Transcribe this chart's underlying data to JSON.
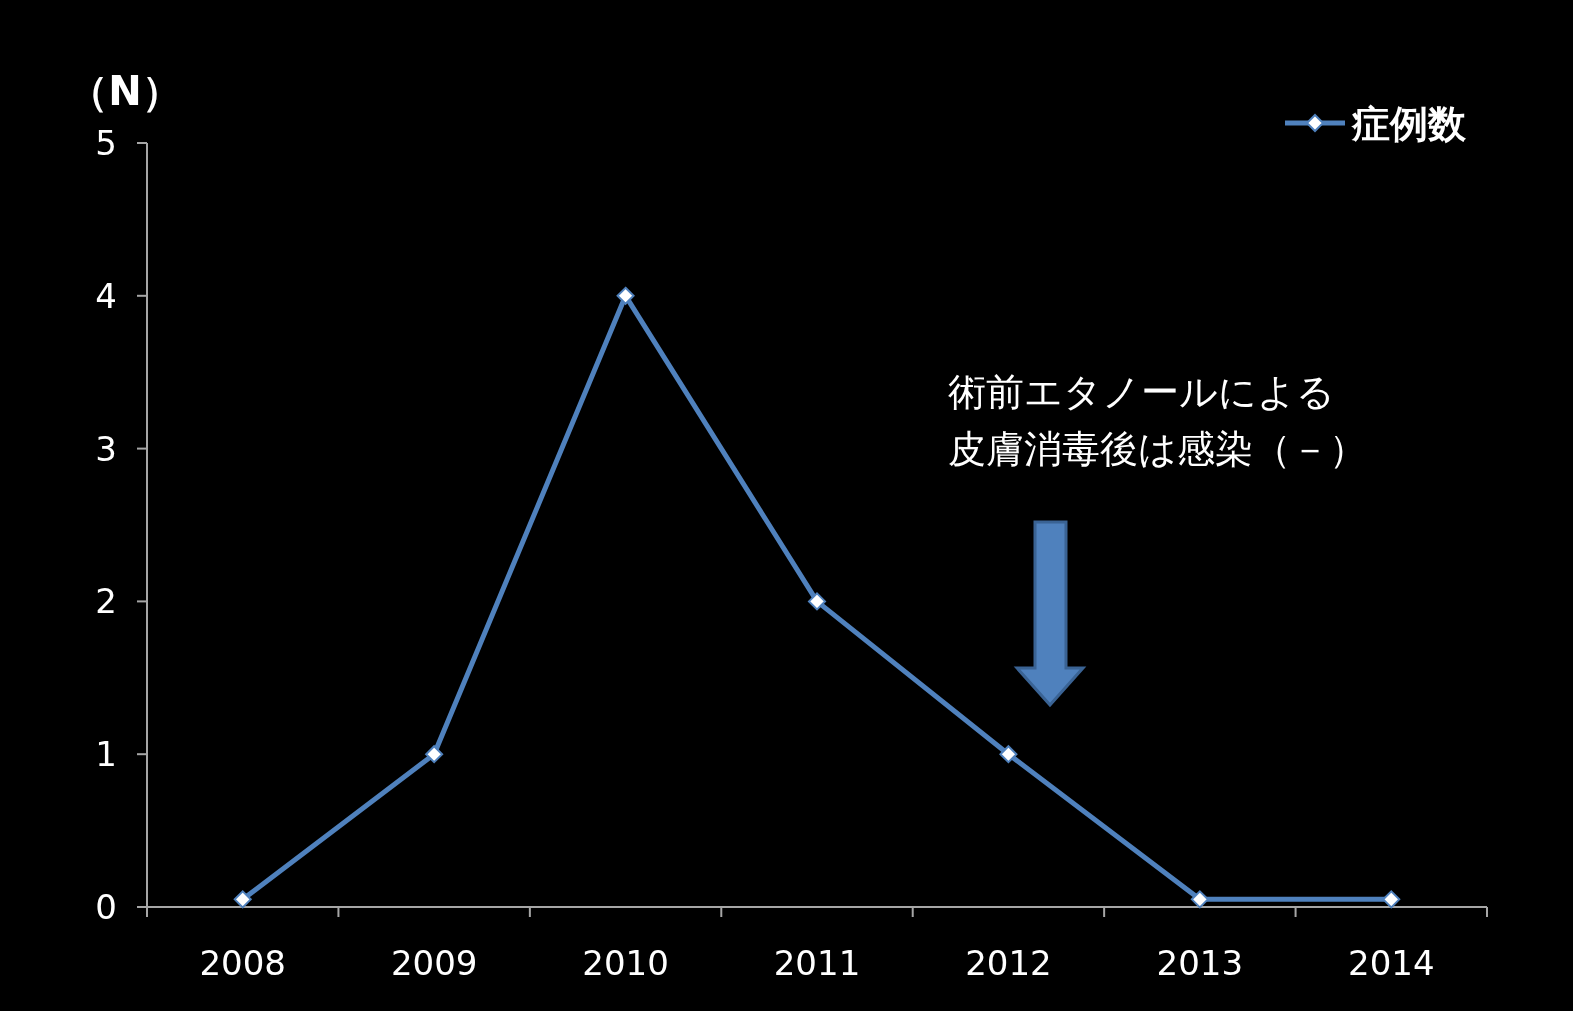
{
  "chart_data": {
    "type": "line",
    "ylabel": "（N）",
    "categories": [
      "2008",
      "2009",
      "2010",
      "2011",
      "2012",
      "2013",
      "2014"
    ],
    "series": [
      {
        "name": "症例数",
        "color": "#4f81bd",
        "values": [
          0.05,
          1,
          4,
          2,
          1,
          0.05,
          0.05
        ]
      }
    ],
    "ylim": [
      0,
      5
    ],
    "yticks": [
      0,
      1,
      2,
      3,
      4,
      5
    ],
    "grid": false,
    "legend": "top right",
    "marker": "diamond",
    "line_style": "solid",
    "annotations": [
      "術前エタノールによる",
      "皮膚消毒後は感染（－）"
    ]
  }
}
